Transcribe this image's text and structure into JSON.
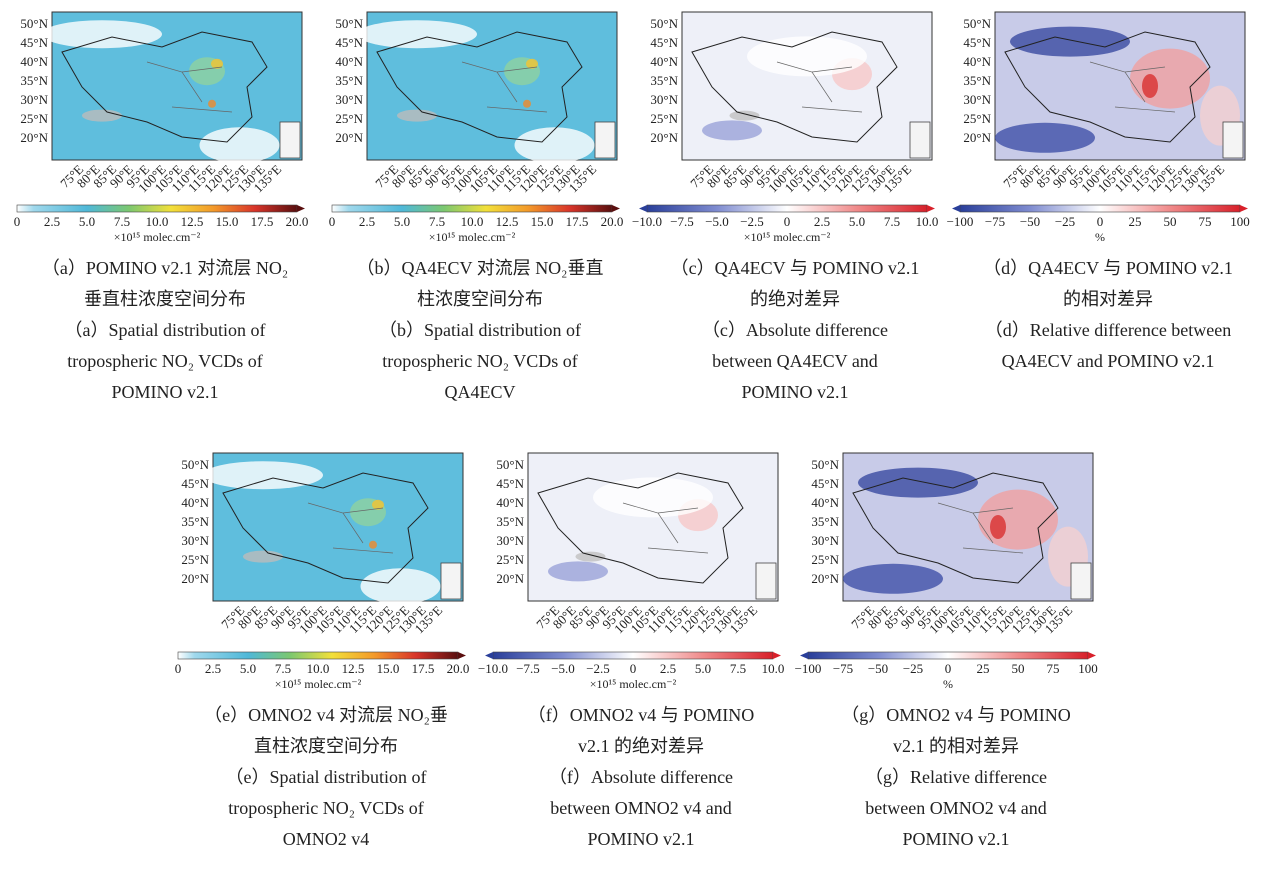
{
  "lat_labels": [
    "50°N",
    "45°N",
    "40°N",
    "35°N",
    "30°N",
    "25°N",
    "20°N"
  ],
  "lon_labels": [
    "75°E",
    "80°E",
    "85°E",
    "90°E",
    "95°E",
    "100°E",
    "105°E",
    "110°E",
    "115°E",
    "120°E",
    "125°E",
    "130°E",
    "135°E"
  ],
  "panels": [
    {
      "colorbar": {
        "ticks": [
          "0",
          "2.5",
          "5.0",
          "7.5",
          "10.0",
          "12.5",
          "15.0",
          "17.5",
          "20.0"
        ],
        "unit": "×10¹⁵ molec.cm⁻²"
      },
      "caption_zh": [
        "（a）POMINO v2.1 对流层 NO₂",
        "垂直柱浓度空间分布"
      ],
      "caption_en": [
        "（a）Spatial distribution of",
        "tropospheric NO₂ VCDs of",
        "POMINO v2.1"
      ]
    },
    {
      "colorbar": {
        "ticks": [
          "0",
          "2.5",
          "5.0",
          "7.5",
          "10.0",
          "12.5",
          "15.0",
          "17.5",
          "20.0"
        ],
        "unit": "×10¹⁵ molec.cm⁻²"
      },
      "caption_zh": [
        "（b）QA4ECV 对流层 NO₂垂直",
        "柱浓度空间分布"
      ],
      "caption_en": [
        "（b）Spatial distribution of",
        "tropospheric NO₂ VCDs of",
        "QA4ECV"
      ]
    },
    {
      "colorbar": {
        "ticks": [
          "−10.0",
          "−7.5",
          "−5.0",
          "−2.5",
          "0",
          "2.5",
          "5.0",
          "7.5",
          "10.0"
        ],
        "unit": "×10¹⁵ molec.cm⁻²"
      },
      "caption_zh": [
        "（c）QA4ECV 与 POMINO v2.1",
        "的绝对差异"
      ],
      "caption_en": [
        "（c）Absolute difference",
        "between QA4ECV and",
        "POMINO v2.1"
      ]
    },
    {
      "colorbar": {
        "ticks": [
          "−100",
          "−75",
          "−50",
          "−25",
          "0",
          "25",
          "50",
          "75",
          "100"
        ],
        "unit": "%"
      },
      "caption_zh": [
        "（d）QA4ECV 与 POMINO v2.1",
        "的相对差异"
      ],
      "caption_en": [
        "（d）Relative difference between",
        "QA4ECV and POMINO v2.1"
      ]
    },
    {
      "colorbar": {
        "ticks": [
          "0",
          "2.5",
          "5.0",
          "7.5",
          "10.0",
          "12.5",
          "15.0",
          "17.5",
          "20.0"
        ],
        "unit": "×10¹⁵ molec.cm⁻²"
      },
      "caption_zh": [
        "（e）OMNO2 v4 对流层 NO₂垂",
        "直柱浓度空间分布"
      ],
      "caption_en": [
        "（e）Spatial distribution of",
        "tropospheric NO₂ VCDs of",
        "OMNO2 v4"
      ]
    },
    {
      "colorbar": {
        "ticks": [
          "−10.0",
          "−7.5",
          "−5.0",
          "−2.5",
          "0",
          "2.5",
          "5.0",
          "7.5",
          "10.0"
        ],
        "unit": "×10¹⁵ molec.cm⁻²"
      },
      "caption_zh": [
        "（f）OMNO2 v4 与 POMINO",
        "v2.1 的绝对差异"
      ],
      "caption_en": [
        "（f）Absolute difference",
        "between OMNO2 v4 and",
        "POMINO v2.1"
      ]
    },
    {
      "colorbar": {
        "ticks": [
          "−100",
          "−75",
          "−50",
          "−25",
          "0",
          "25",
          "50",
          "75",
          "100"
        ],
        "unit": "%"
      },
      "caption_zh": [
        "（g）OMNO2 v4 与 POMINO",
        "v2.1 的相对差异"
      ],
      "caption_en": [
        "（g）Relative difference",
        "between OMNO2 v4 and",
        "POMINO v2.1"
      ]
    }
  ]
}
